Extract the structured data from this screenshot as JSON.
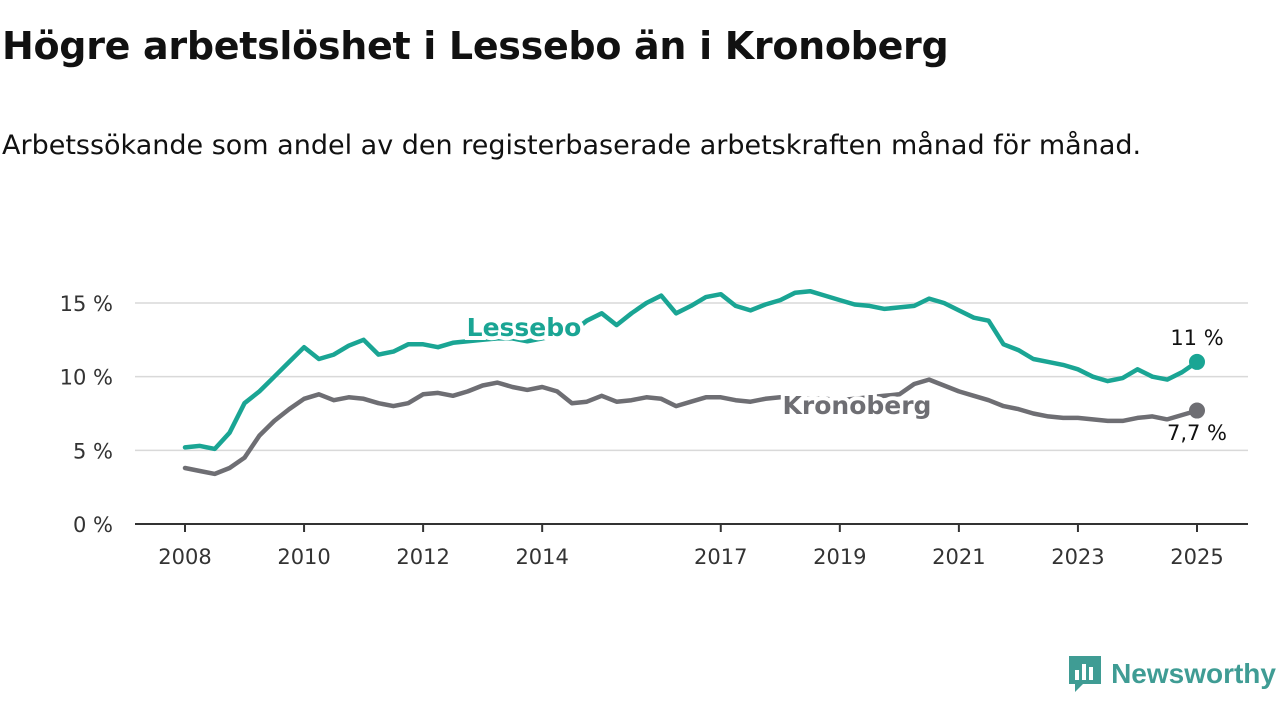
{
  "title": "Högre arbetslöshet i Lessebo än i Kronoberg",
  "subtitle": "Arbetssökande som andel av den registerbaserade arbetskraften månad för månad.",
  "brand": {
    "name": "Newsworthy",
    "icon": "newsworthy-logo-icon",
    "color": "#3f9c94"
  },
  "chart_data": {
    "type": "line",
    "y_ticks": [
      0,
      5,
      10,
      15
    ],
    "y_tick_labels": [
      "0 %",
      "5 %",
      "10 %",
      "15 %"
    ],
    "x_ticks": [
      2008,
      2010,
      2012,
      2014,
      2017,
      2019,
      2021,
      2023,
      2025
    ],
    "x_tick_labels": [
      "2008",
      "2010",
      "2012",
      "2014",
      "2017",
      "2019",
      "2021",
      "2023",
      "2025"
    ],
    "xlim": [
      2008,
      2025
    ],
    "ylim": [
      0,
      16
    ],
    "grid": true,
    "series": [
      {
        "name": "Lessebo",
        "color": "#1aa594",
        "end_label": "11 %",
        "x": [
          2008.0,
          2008.25,
          2008.5,
          2008.75,
          2009.0,
          2009.25,
          2009.5,
          2009.75,
          2010.0,
          2010.25,
          2010.5,
          2010.75,
          2011.0,
          2011.25,
          2011.5,
          2011.75,
          2012.0,
          2012.25,
          2012.5,
          2012.75,
          2013.0,
          2013.25,
          2013.5,
          2013.75,
          2014.0,
          2014.25,
          2014.5,
          2014.75,
          2015.0,
          2015.25,
          2015.5,
          2015.75,
          2016.0,
          2016.25,
          2016.5,
          2016.75,
          2017.0,
          2017.25,
          2017.5,
          2017.75,
          2018.0,
          2018.25,
          2018.5,
          2018.75,
          2019.0,
          2019.25,
          2019.5,
          2019.75,
          2020.0,
          2020.25,
          2020.5,
          2020.75,
          2021.0,
          2021.25,
          2021.5,
          2021.75,
          2022.0,
          2022.25,
          2022.5,
          2022.75,
          2023.0,
          2023.25,
          2023.5,
          2023.75,
          2024.0,
          2024.25,
          2024.5,
          2024.75,
          2025.0
        ],
        "values": [
          5.2,
          5.3,
          5.1,
          6.2,
          8.2,
          9.0,
          10.0,
          11.0,
          12.0,
          11.2,
          11.5,
          12.1,
          12.5,
          11.5,
          11.7,
          12.2,
          12.2,
          12.0,
          12.3,
          12.4,
          12.5,
          12.6,
          12.6,
          12.4,
          12.6,
          12.8,
          13.0,
          13.8,
          14.3,
          13.5,
          14.3,
          15.0,
          15.5,
          14.3,
          14.8,
          15.4,
          15.6,
          14.8,
          14.5,
          14.9,
          15.2,
          15.7,
          15.8,
          15.5,
          15.2,
          14.9,
          14.8,
          14.6,
          14.7,
          14.8,
          15.3,
          15.0,
          14.5,
          14.0,
          13.8,
          12.2,
          11.8,
          11.2,
          11.0,
          10.8,
          10.5,
          10.0,
          9.7,
          9.9,
          10.5,
          10.0,
          9.8,
          10.3,
          11.0
        ]
      },
      {
        "name": "Kronoberg",
        "color": "#6e6e73",
        "end_label": "7,7 %",
        "x": [
          2008.0,
          2008.25,
          2008.5,
          2008.75,
          2009.0,
          2009.25,
          2009.5,
          2009.75,
          2010.0,
          2010.25,
          2010.5,
          2010.75,
          2011.0,
          2011.25,
          2011.5,
          2011.75,
          2012.0,
          2012.25,
          2012.5,
          2012.75,
          2013.0,
          2013.25,
          2013.5,
          2013.75,
          2014.0,
          2014.25,
          2014.5,
          2014.75,
          2015.0,
          2015.25,
          2015.5,
          2015.75,
          2016.0,
          2016.25,
          2016.5,
          2016.75,
          2017.0,
          2017.25,
          2017.5,
          2017.75,
          2018.0,
          2018.25,
          2018.5,
          2018.75,
          2019.0,
          2019.25,
          2019.5,
          2019.75,
          2020.0,
          2020.25,
          2020.5,
          2020.75,
          2021.0,
          2021.25,
          2021.5,
          2021.75,
          2022.0,
          2022.25,
          2022.5,
          2022.75,
          2023.0,
          2023.25,
          2023.5,
          2023.75,
          2024.0,
          2024.25,
          2024.5,
          2024.75,
          2025.0
        ],
        "values": [
          3.8,
          3.6,
          3.4,
          3.8,
          4.5,
          6.0,
          7.0,
          7.8,
          8.5,
          8.8,
          8.4,
          8.6,
          8.5,
          8.2,
          8.0,
          8.2,
          8.8,
          8.9,
          8.7,
          9.0,
          9.4,
          9.6,
          9.3,
          9.1,
          9.3,
          9.0,
          8.2,
          8.3,
          8.7,
          8.3,
          8.4,
          8.6,
          8.5,
          8.0,
          8.3,
          8.6,
          8.6,
          8.4,
          8.3,
          8.5,
          8.6,
          8.6,
          8.5,
          8.5,
          8.4,
          8.5,
          8.6,
          8.7,
          8.8,
          9.5,
          9.8,
          9.4,
          9.0,
          8.7,
          8.4,
          8.0,
          7.8,
          7.5,
          7.3,
          7.2,
          7.2,
          7.1,
          7.0,
          7.0,
          7.2,
          7.3,
          7.1,
          7.4,
          7.7
        ]
      }
    ]
  }
}
